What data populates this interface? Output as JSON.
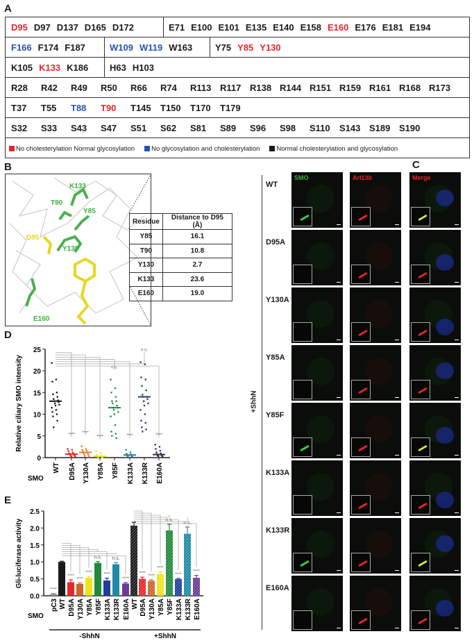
{
  "panels": {
    "a": "A",
    "b": "B",
    "c": "C",
    "d": "D",
    "e": "E"
  },
  "colors": {
    "red": "#e8262a",
    "blue": "#2a52b0",
    "black": "#1a1a1a"
  },
  "panelA": {
    "rows": [
      [
        {
          "items": [
            [
              "D95",
              "red"
            ],
            [
              "D97",
              "black"
            ],
            [
              "D137",
              "black"
            ],
            [
              "D165",
              "black"
            ],
            [
              "D172",
              "black"
            ]
          ]
        },
        {
          "items": [
            [
              "E71",
              "black"
            ],
            [
              "E100",
              "black"
            ],
            [
              "E101",
              "black"
            ],
            [
              "E135",
              "black"
            ],
            [
              "E140",
              "black"
            ],
            [
              "E158",
              "black"
            ],
            [
              "E160",
              "red"
            ],
            [
              "E176",
              "black"
            ],
            [
              "E181",
              "black"
            ],
            [
              "E194",
              "black"
            ]
          ]
        }
      ],
      [
        {
          "items": [
            [
              "F166",
              "blue"
            ],
            [
              "F174",
              "black"
            ],
            [
              "F187",
              "black"
            ]
          ]
        },
        {
          "items": [
            [
              "W109",
              "blue"
            ],
            [
              "W119",
              "blue"
            ],
            [
              "W163",
              "black"
            ]
          ]
        },
        {
          "items": [
            [
              "Y75",
              "black"
            ],
            [
              "Y85",
              "red"
            ],
            [
              "Y130",
              "red"
            ]
          ]
        }
      ],
      [
        {
          "items": [
            [
              "K105",
              "black"
            ],
            [
              "K133",
              "red"
            ],
            [
              "K186",
              "black"
            ]
          ]
        },
        {
          "items": [
            [
              "H63",
              "black"
            ],
            [
              "H103",
              "black"
            ]
          ]
        }
      ],
      [
        {
          "items": [
            [
              "R28",
              "black"
            ],
            [
              "R42",
              "black"
            ],
            [
              "R49",
              "black"
            ],
            [
              "R50",
              "black"
            ],
            [
              "R66",
              "black"
            ],
            [
              "R74",
              "black"
            ],
            [
              "R113",
              "black"
            ],
            [
              "R117",
              "black"
            ],
            [
              "R138",
              "black"
            ],
            [
              "R144",
              "black"
            ],
            [
              "R151",
              "black"
            ],
            [
              "R159",
              "black"
            ],
            [
              "R161",
              "black"
            ],
            [
              "R168",
              "black"
            ],
            [
              "R173",
              "black"
            ]
          ]
        }
      ],
      [
        {
          "items": [
            [
              "T37",
              "black"
            ],
            [
              "T55",
              "black"
            ],
            [
              "T88",
              "blue"
            ],
            [
              "T90",
              "red"
            ],
            [
              "T145",
              "black"
            ],
            [
              "T150",
              "black"
            ],
            [
              "T170",
              "black"
            ],
            [
              "T179",
              "black"
            ]
          ]
        }
      ],
      [
        {
          "items": [
            [
              "S32",
              "black"
            ],
            [
              "S33",
              "black"
            ],
            [
              "S43",
              "black"
            ],
            [
              "S47",
              "black"
            ],
            [
              "S51",
              "black"
            ],
            [
              "S62",
              "black"
            ],
            [
              "S81",
              "black"
            ],
            [
              "S89",
              "black"
            ],
            [
              "S96",
              "black"
            ],
            [
              "S98",
              "black"
            ],
            [
              "S110",
              "black"
            ],
            [
              "S143",
              "black"
            ],
            [
              "S189",
              "black"
            ],
            [
              "S190",
              "black"
            ]
          ]
        }
      ]
    ],
    "legend": [
      {
        "label": "No cholesterylation Normal glycosylation",
        "color": "#e8262a"
      },
      {
        "label": "No glycosylation and cholesterylation",
        "color": "#2a52b0"
      },
      {
        "label": "Normal cholesterylation and glycosylation",
        "color": "#1a1a1a"
      }
    ]
  },
  "panelB": {
    "structure_labels": [
      {
        "text": "K133",
        "color": "#3cb043"
      },
      {
        "text": "T90",
        "color": "#3cb043"
      },
      {
        "text": "Y85",
        "color": "#3cb043"
      },
      {
        "text": "D95",
        "color": "#e8d620"
      },
      {
        "text": "Y130",
        "color": "#3cb043"
      },
      {
        "text": "E160",
        "color": "#3cb043"
      }
    ],
    "table": {
      "headers": [
        "Residue",
        "Distance to D95 (Å)"
      ],
      "rows": [
        [
          "Y85",
          "16.1"
        ],
        [
          "T90",
          "10.8"
        ],
        [
          "Y130",
          "2.7"
        ],
        [
          "K133",
          "23.6"
        ],
        [
          "E160",
          "19.0"
        ]
      ]
    }
  },
  "panelC": {
    "channels": [
      {
        "label": "SMO",
        "color": "#3cb043"
      },
      {
        "label": "Arl13b",
        "color": "#e8262a"
      },
      {
        "label": "Merge",
        "color": "#e8262a"
      }
    ],
    "rows": [
      "WT",
      "D95A",
      "Y130A",
      "Y85A",
      "Y85F",
      "K133A",
      "K133R",
      "E160A"
    ],
    "treatment": "+ShhN",
    "cilia_smo": [
      true,
      false,
      false,
      false,
      true,
      false,
      true,
      false
    ]
  },
  "chart_data": [
    {
      "type": "scatter",
      "ylabel": "Relative ciliary SMO intensity",
      "xlabel": "SMO",
      "ylim": [
        0,
        25
      ],
      "yticks": [
        0,
        5,
        10,
        15,
        20,
        25
      ],
      "categories": [
        "WT",
        "D95A",
        "Y130A",
        "Y85A",
        "Y85F",
        "K133A",
        "K133R",
        "E160A"
      ],
      "colors": [
        "#1a1a1a",
        "#e8262a",
        "#f07a2a",
        "#f2e21a",
        "#1f8a3c",
        "#1f7fa0",
        "#2a3570",
        "#3c2a5a"
      ],
      "means": [
        13,
        0.8,
        1.2,
        0.3,
        11.5,
        0.6,
        14,
        0.7
      ],
      "points": [
        [
          21.8,
          18,
          17.5,
          15,
          14.6,
          14,
          13.5,
          13.2,
          13,
          12.8,
          12.5,
          12.2,
          12,
          11.5,
          11,
          10.5,
          10,
          9.5,
          8.5,
          7
        ],
        [
          2,
          1.8,
          1.5,
          1.2,
          1,
          0.9,
          0.8,
          0.7,
          0.6,
          0.5,
          0.4,
          0.3,
          0.2
        ],
        [
          2.6,
          2,
          1.8,
          1.6,
          1.4,
          1.2,
          1.1,
          1,
          0.8,
          0.6,
          0.4,
          0.2
        ],
        [
          1.5,
          1,
          0.6,
          0.4,
          0.3,
          0.2,
          0.1,
          0.05
        ],
        [
          18,
          16,
          15,
          14,
          13,
          13,
          12.5,
          12,
          11.5,
          11.5,
          11,
          10.5,
          10,
          9.5,
          7.5,
          6,
          5.5,
          5,
          4.5
        ],
        [
          1.8,
          1.2,
          0.9,
          0.7,
          0.5,
          0.4,
          0.3,
          0.2
        ],
        [
          22,
          21.5,
          18.5,
          18,
          16.5,
          15.5,
          14.5,
          14,
          14,
          13.5,
          13,
          12.5,
          12,
          11,
          10,
          8.5,
          8,
          7,
          6.5,
          6
        ],
        [
          3,
          2.5,
          2,
          1.6,
          1.2,
          1,
          0.8,
          0.6,
          0.5,
          0.4,
          0.3,
          0.2
        ]
      ],
      "significance": [
        "",
        "****",
        "****",
        "****",
        "n.s.",
        "****",
        "n.s.",
        "****"
      ]
    },
    {
      "type": "bar",
      "ylabel": "Gli-luciferase activity",
      "xlabel": "SMO",
      "ylim": [
        0,
        2.5
      ],
      "yticks": [
        "0.0",
        "0.5",
        "1.0",
        "1.5",
        "2.0",
        "2.5"
      ],
      "categories": [
        "pC3",
        "WT",
        "D95A",
        "Y130A",
        "Y85A",
        "Y85F",
        "K133A",
        "K133R",
        "E160A",
        "WT",
        "D95A",
        "Y130A",
        "Y85A",
        "Y85F",
        "K133A",
        "K133R",
        "E160A"
      ],
      "groups": [
        {
          "label": "-ShhN",
          "span": [
            0,
            8
          ]
        },
        {
          "label": "+ShhN",
          "span": [
            9,
            16
          ]
        }
      ],
      "values": [
        0.05,
        1.0,
        0.4,
        0.35,
        0.53,
        0.97,
        0.45,
        0.93,
        0.36,
        2.07,
        0.5,
        0.44,
        0.64,
        1.93,
        0.49,
        1.83,
        0.53
      ],
      "errors": [
        0.02,
        0.02,
        0.07,
        0.03,
        0.04,
        0.04,
        0.07,
        0.05,
        0.03,
        0.1,
        0.05,
        0.03,
        0.07,
        0.18,
        0.02,
        0.2,
        0.07
      ],
      "colors": [
        "#888888",
        "#1a1a1a",
        "#e8262a",
        "#c8652a",
        "#f2e21a",
        "#1f8a3c",
        "#1d3f9c",
        "#1f8aa6",
        "#6a3a98",
        "#1a1a1a",
        "#e8262a",
        "#c8652a",
        "#f2e21a",
        "#1f8a3c",
        "#1d3f9c",
        "#1f8aa6",
        "#6a3a98"
      ],
      "hatched": [
        false,
        false,
        false,
        false,
        false,
        false,
        false,
        false,
        false,
        true,
        true,
        true,
        true,
        true,
        true,
        true,
        true
      ],
      "significance": [
        "****",
        "",
        "****",
        "****",
        "****",
        "n.s.",
        "****",
        "n.s.",
        "****",
        "",
        "****",
        "****",
        "****",
        "n.s.",
        "****",
        "n.s.",
        "****"
      ]
    }
  ]
}
